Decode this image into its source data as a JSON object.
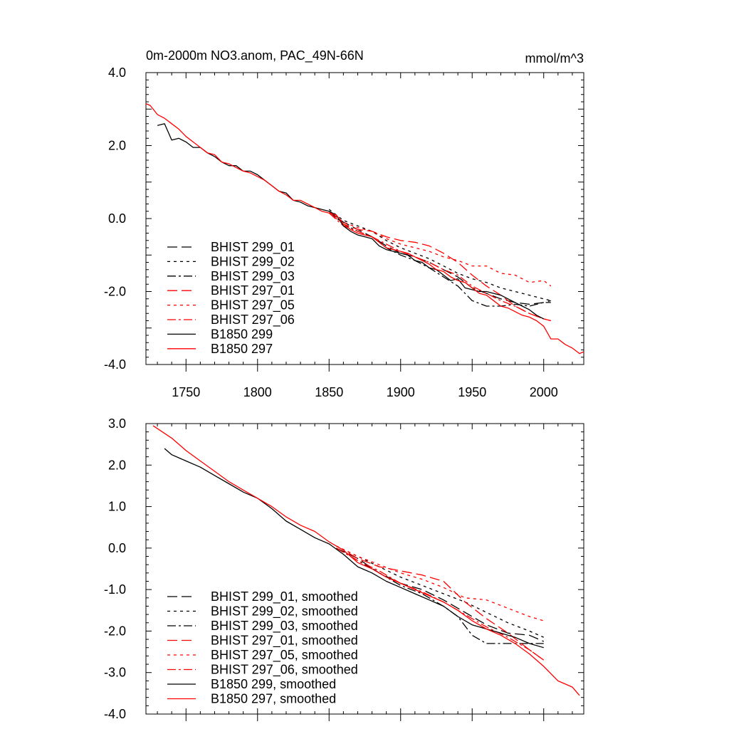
{
  "chart_data": [
    {
      "type": "line",
      "title": "0m-2000m NO3.anom, PAC_49N-66N",
      "units": "mmol/m^3",
      "xlim": [
        1722,
        2028
      ],
      "ylim": [
        -4.0,
        4.0
      ],
      "yticks": [
        "4.0",
        "2.0",
        "0.0",
        "-2.0",
        "-4.0"
      ],
      "xticks": [
        "1750",
        "1800",
        "1850",
        "1900",
        "1950",
        "2000"
      ],
      "legend_position": "lower-left",
      "series": [
        {
          "name": "BHIST 299_01",
          "color": "#000000",
          "dash": "dash",
          "x": [
            1850,
            1860,
            1870,
            1880,
            1890,
            1900,
            1910,
            1920,
            1930,
            1940,
            1950,
            1960,
            1970,
            1980,
            1990,
            2000,
            2005
          ],
          "y": [
            0.2,
            -0.1,
            -0.3,
            -0.5,
            -0.75,
            -0.95,
            -1.05,
            -1.2,
            -1.4,
            -1.6,
            -1.9,
            -2.05,
            -2.2,
            -2.3,
            -2.35,
            -2.3,
            -2.25
          ]
        },
        {
          "name": "BHIST 299_02",
          "color": "#000000",
          "dash": "dot",
          "x": [
            1850,
            1860,
            1870,
            1880,
            1890,
            1900,
            1910,
            1920,
            1930,
            1940,
            1950,
            1960,
            1970,
            1980,
            1990,
            2000,
            2005
          ],
          "y": [
            0.25,
            -0.05,
            -0.2,
            -0.35,
            -0.6,
            -0.8,
            -0.95,
            -1.1,
            -1.3,
            -1.5,
            -1.65,
            -1.75,
            -1.9,
            -2.0,
            -2.1,
            -2.2,
            -2.25
          ]
        },
        {
          "name": "BHIST 299_03",
          "color": "#000000",
          "dash": "dashdot",
          "x": [
            1850,
            1860,
            1870,
            1880,
            1890,
            1900,
            1910,
            1920,
            1930,
            1940,
            1950,
            1960,
            1970,
            1980,
            1990,
            2000,
            2005
          ],
          "y": [
            0.2,
            -0.15,
            -0.35,
            -0.5,
            -0.8,
            -1.0,
            -1.15,
            -1.35,
            -1.6,
            -1.85,
            -2.25,
            -2.4,
            -2.4,
            -2.35,
            -2.4,
            -2.3,
            -2.3
          ]
        },
        {
          "name": "BHIST 297_01",
          "color": "#ff0000",
          "dash": "dash",
          "x": [
            1850,
            1860,
            1870,
            1880,
            1890,
            1900,
            1910,
            1920,
            1930,
            1940,
            1950,
            1960,
            1970,
            1980,
            1990,
            2000,
            2005
          ],
          "y": [
            0.15,
            -0.15,
            -0.3,
            -0.35,
            -0.5,
            -0.6,
            -0.65,
            -0.75,
            -0.95,
            -1.2,
            -1.55,
            -1.85,
            -2.1,
            -2.4,
            -2.6,
            -2.75,
            -2.8
          ]
        },
        {
          "name": "BHIST 297_05",
          "color": "#ff0000",
          "dash": "dot",
          "x": [
            1850,
            1860,
            1870,
            1880,
            1890,
            1900,
            1910,
            1920,
            1930,
            1940,
            1950,
            1960,
            1970,
            1980,
            1990,
            2000,
            2005
          ],
          "y": [
            0.2,
            -0.1,
            -0.25,
            -0.35,
            -0.55,
            -0.7,
            -0.8,
            -0.9,
            -1.05,
            -1.15,
            -1.3,
            -1.3,
            -1.5,
            -1.55,
            -1.75,
            -1.7,
            -1.85
          ]
        },
        {
          "name": "BHIST 297_06",
          "color": "#ff0000",
          "dash": "dashdot",
          "x": [
            1850,
            1860,
            1870,
            1880,
            1890,
            1900,
            1910,
            1920,
            1930,
            1940,
            1950,
            1960,
            1970,
            1980,
            1990,
            2000,
            2005
          ],
          "y": [
            0.15,
            -0.2,
            -0.35,
            -0.5,
            -0.7,
            -0.9,
            -1.05,
            -1.2,
            -1.4,
            -1.55,
            -1.85,
            -2.05,
            -2.25,
            -2.4,
            -2.6,
            -2.75,
            -2.8
          ]
        },
        {
          "name": "B1850 299",
          "color": "#000000",
          "dash": "solid",
          "x": [
            1730,
            1735,
            1740,
            1745,
            1750,
            1755,
            1760,
            1765,
            1770,
            1775,
            1780,
            1785,
            1790,
            1795,
            1800,
            1805,
            1810,
            1815,
            1820,
            1825,
            1830,
            1835,
            1840,
            1845,
            1850,
            1855,
            1860,
            1865,
            1870,
            1875,
            1880,
            1885,
            1890,
            1895,
            1900,
            1905,
            1910,
            1915,
            1920,
            1925,
            1930,
            1935,
            1940,
            1945,
            1950,
            1955,
            1960,
            1965,
            1970,
            1975,
            1980,
            1985,
            1990,
            1995,
            2000
          ],
          "y": [
            2.55,
            2.6,
            2.15,
            2.2,
            2.1,
            1.95,
            1.95,
            1.8,
            1.7,
            1.55,
            1.45,
            1.45,
            1.3,
            1.3,
            1.2,
            1.05,
            0.9,
            0.75,
            0.7,
            0.5,
            0.45,
            0.35,
            0.3,
            0.25,
            0.2,
            0.1,
            -0.2,
            -0.35,
            -0.45,
            -0.5,
            -0.55,
            -0.75,
            -0.85,
            -0.9,
            -0.95,
            -1.0,
            -1.15,
            -1.2,
            -1.35,
            -1.4,
            -1.55,
            -1.7,
            -1.65,
            -1.9,
            -1.95,
            -2.0,
            -2.0,
            -2.05,
            -2.1,
            -2.2,
            -2.3,
            -2.4,
            -2.5,
            -2.65,
            -2.75
          ]
        },
        {
          "name": "B1850 297",
          "color": "#ff0000",
          "dash": "solid",
          "x": [
            1722,
            1725,
            1730,
            1735,
            1740,
            1745,
            1750,
            1755,
            1760,
            1765,
            1770,
            1775,
            1780,
            1785,
            1790,
            1795,
            1800,
            1805,
            1810,
            1815,
            1820,
            1825,
            1830,
            1835,
            1840,
            1845,
            1850,
            1855,
            1860,
            1865,
            1870,
            1875,
            1880,
            1885,
            1890,
            1895,
            1900,
            1905,
            1910,
            1915,
            1920,
            1925,
            1930,
            1935,
            1940,
            1945,
            1950,
            1955,
            1960,
            1965,
            1970,
            1975,
            1980,
            1985,
            1990,
            1995,
            2000,
            2005,
            2010,
            2015,
            2020,
            2025,
            2028
          ],
          "y": [
            3.15,
            3.1,
            2.85,
            2.75,
            2.6,
            2.45,
            2.25,
            2.1,
            1.95,
            1.8,
            1.75,
            1.55,
            1.5,
            1.4,
            1.3,
            1.25,
            1.15,
            1.05,
            0.9,
            0.75,
            0.65,
            0.5,
            0.5,
            0.4,
            0.3,
            0.2,
            0.15,
            0.1,
            -0.15,
            -0.3,
            -0.4,
            -0.45,
            -0.5,
            -0.65,
            -0.8,
            -0.85,
            -0.9,
            -0.95,
            -1.05,
            -1.15,
            -1.25,
            -1.4,
            -1.45,
            -1.6,
            -1.7,
            -1.75,
            -1.9,
            -2.05,
            -2.1,
            -2.25,
            -2.4,
            -2.45,
            -2.55,
            -2.65,
            -2.7,
            -2.8,
            -2.95,
            -3.3,
            -3.3,
            -3.45,
            -3.55,
            -3.7,
            -3.65
          ]
        }
      ]
    },
    {
      "type": "line",
      "title": "",
      "xlim": [
        1722,
        2028
      ],
      "ylim": [
        -4.0,
        3.0
      ],
      "yticks": [
        "3.0",
        "2.0",
        "1.0",
        "0.0",
        "-1.0",
        "-2.0",
        "-3.0",
        "-4.0"
      ],
      "legend_position": "lower-left",
      "series": [
        {
          "name": "BHIST 299_01, smoothed",
          "color": "#000000",
          "dash": "dash",
          "x": [
            1855,
            1870,
            1885,
            1900,
            1915,
            1930,
            1945,
            1960,
            1975,
            1990,
            2000
          ],
          "y": [
            0.0,
            -0.25,
            -0.6,
            -0.85,
            -1.0,
            -1.25,
            -1.55,
            -1.85,
            -2.05,
            -2.1,
            -2.25
          ]
        },
        {
          "name": "BHIST 299_02, smoothed",
          "color": "#000000",
          "dash": "dot",
          "x": [
            1855,
            1870,
            1885,
            1900,
            1915,
            1930,
            1945,
            1960,
            1975,
            1990,
            2000
          ],
          "y": [
            0.05,
            -0.2,
            -0.45,
            -0.7,
            -0.9,
            -1.1,
            -1.3,
            -1.55,
            -1.8,
            -2.0,
            -2.15
          ]
        },
        {
          "name": "BHIST 299_03, smoothed",
          "color": "#000000",
          "dash": "dashdot",
          "x": [
            1855,
            1870,
            1885,
            1900,
            1915,
            1930,
            1940,
            1950,
            1960,
            1975,
            1990,
            2000
          ],
          "y": [
            0.0,
            -0.3,
            -0.6,
            -0.9,
            -1.1,
            -1.4,
            -1.65,
            -2.1,
            -2.3,
            -2.3,
            -2.3,
            -2.3
          ]
        },
        {
          "name": "BHIST 297_01, smoothed",
          "color": "#ff0000",
          "dash": "dash",
          "x": [
            1855,
            1870,
            1885,
            1900,
            1915,
            1930,
            1945,
            1960,
            1975,
            1990,
            2000
          ],
          "y": [
            0.05,
            -0.25,
            -0.45,
            -0.55,
            -0.65,
            -0.8,
            -1.3,
            -1.7,
            -2.05,
            -2.45,
            -2.7
          ]
        },
        {
          "name": "BHIST 297_05, smoothed",
          "color": "#ff0000",
          "dash": "dot",
          "x": [
            1855,
            1870,
            1885,
            1900,
            1915,
            1930,
            1945,
            1960,
            1975,
            1990,
            2000
          ],
          "y": [
            0.05,
            -0.2,
            -0.4,
            -0.6,
            -0.75,
            -0.95,
            -1.2,
            -1.25,
            -1.45,
            -1.65,
            -1.75
          ]
        },
        {
          "name": "BHIST 297_06, smoothed",
          "color": "#ff0000",
          "dash": "dashdot",
          "x": [
            1855,
            1870,
            1885,
            1900,
            1915,
            1930,
            1945,
            1960,
            1975,
            1990,
            2000
          ],
          "y": [
            0.0,
            -0.3,
            -0.55,
            -0.85,
            -1.05,
            -1.3,
            -1.6,
            -1.9,
            -2.15,
            -2.45,
            -2.7
          ]
        },
        {
          "name": "B1850 299, smoothed",
          "color": "#000000",
          "dash": "solid",
          "x": [
            1735,
            1740,
            1750,
            1760,
            1770,
            1780,
            1790,
            1800,
            1810,
            1820,
            1830,
            1840,
            1850,
            1860,
            1870,
            1880,
            1890,
            1900,
            1910,
            1920,
            1930,
            1940,
            1950,
            1960,
            1970,
            1980,
            1990,
            2000
          ],
          "y": [
            2.4,
            2.25,
            2.1,
            1.95,
            1.75,
            1.55,
            1.35,
            1.2,
            0.95,
            0.65,
            0.45,
            0.25,
            0.1,
            -0.15,
            -0.45,
            -0.6,
            -0.8,
            -0.95,
            -1.1,
            -1.25,
            -1.4,
            -1.65,
            -1.85,
            -1.95,
            -2.05,
            -2.15,
            -2.3,
            -2.4
          ]
        },
        {
          "name": "B1850 297, smoothed",
          "color": "#ff0000",
          "dash": "solid",
          "x": [
            1727,
            1740,
            1750,
            1760,
            1770,
            1780,
            1790,
            1800,
            1810,
            1820,
            1830,
            1840,
            1850,
            1860,
            1870,
            1880,
            1890,
            1900,
            1910,
            1920,
            1930,
            1940,
            1950,
            1960,
            1970,
            1980,
            1990,
            2000,
            2010,
            2020,
            2025
          ],
          "y": [
            2.95,
            2.65,
            2.35,
            2.1,
            1.85,
            1.6,
            1.4,
            1.2,
            1.0,
            0.75,
            0.55,
            0.4,
            0.15,
            -0.05,
            -0.35,
            -0.5,
            -0.7,
            -0.85,
            -1.0,
            -1.15,
            -1.3,
            -1.5,
            -1.75,
            -1.95,
            -2.1,
            -2.3,
            -2.55,
            -2.85,
            -3.2,
            -3.35,
            -3.55
          ]
        }
      ]
    }
  ]
}
